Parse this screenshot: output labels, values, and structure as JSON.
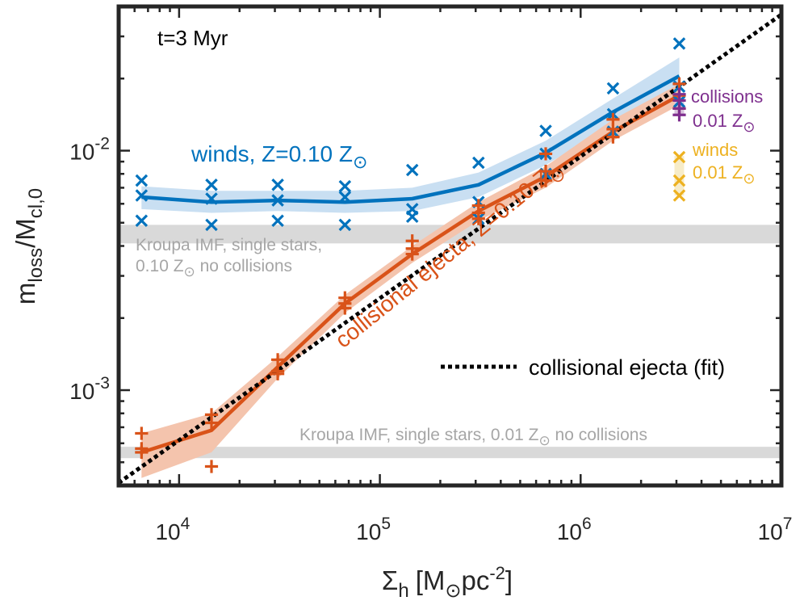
{
  "chart_data": {
    "type": "line",
    "scale": {
      "x": "log",
      "y": "log"
    },
    "xlim": [
      5000,
      10000000
    ],
    "ylim": [
      0.0004,
      0.04
    ],
    "xlabel": {
      "main": "Σ",
      "sub": "h",
      "bracket": "[M",
      "unit": "pc",
      "sup": "-2",
      "close": "]"
    },
    "ylabel": {
      "main": "m",
      "sub1": "loss",
      "slash": "/M",
      "sub2": "cl,0"
    },
    "xticks": [
      {
        "value": 10000,
        "base": "10",
        "exp": "4"
      },
      {
        "value": 100000,
        "base": "10",
        "exp": "5"
      },
      {
        "value": 1000000,
        "base": "10",
        "exp": "6"
      },
      {
        "value": 10000000,
        "base": "10",
        "exp": "7"
      }
    ],
    "yticks": [
      {
        "value": 0.001,
        "base": "10",
        "exp": "-3"
      },
      {
        "value": 0.01,
        "base": "10",
        "exp": "-2"
      }
    ],
    "annotations": {
      "time": "t=3 Myr",
      "winds_label": {
        "pre": "winds, Z=0.10 Z",
        "color": "#0072BD"
      },
      "collisional_label": {
        "pre": "collisional ejecta, Z=0.10 Z",
        "color": "#D95319"
      },
      "kroupa_010": {
        "line1": "Kroupa IMF, single stars,",
        "line2_pre": "0.10 Z",
        "line2_post": " no collisions",
        "color": "#a6a6a6"
      },
      "kroupa_001": {
        "pre": "Kroupa IMF, single stars, 0.01 Z",
        "post": " no collisions",
        "color": "#a6a6a6"
      },
      "collisions_001": {
        "line1": "collisions",
        "line2_pre": "0.01 Z",
        "color": "#7E2F8E"
      },
      "winds_001": {
        "line1": "winds",
        "line2_pre": "0.01 Z",
        "color": "#EDB120"
      },
      "legend_fit": "collisional ejecta (fit)",
      "sun_symbol": "⊙"
    },
    "bands": [
      {
        "name": "kroupa-0.10",
        "y_range": [
          0.0041,
          0.0049
        ],
        "color": "#d9d9d9"
      },
      {
        "name": "kroupa-0.01",
        "y_range": [
          0.00052,
          0.00058
        ],
        "color": "#d9d9d9"
      }
    ],
    "x": [
      6500,
      14500,
      31000,
      67000,
      145000,
      310000,
      670000,
      1450000,
      3100000
    ],
    "series": [
      {
        "key": "winds",
        "color": "#0072BD",
        "band_color": "#c9dff2",
        "marker": "x",
        "values": [
          0.0064,
          0.0061,
          0.0062,
          0.0061,
          0.0063,
          0.0072,
          0.0098,
          0.0145,
          0.0205
        ],
        "band_low": [
          0.0057,
          0.0055,
          0.0056,
          0.0055,
          0.0056,
          0.0064,
          0.0087,
          0.0128,
          0.018
        ],
        "band_high": [
          0.0071,
          0.0068,
          0.0068,
          0.0068,
          0.007,
          0.0081,
          0.011,
          0.0165,
          0.0245
        ],
        "points": [
          [
            6500,
            0.0075
          ],
          [
            6500,
            0.0065
          ],
          [
            6500,
            0.0051
          ],
          [
            14500,
            0.0072
          ],
          [
            14500,
            0.0063
          ],
          [
            14500,
            0.0049
          ],
          [
            31000,
            0.0072
          ],
          [
            31000,
            0.0062
          ],
          [
            31000,
            0.0051
          ],
          [
            67000,
            0.0071
          ],
          [
            67000,
            0.0064
          ],
          [
            67000,
            0.0049
          ],
          [
            145000,
            0.0083
          ],
          [
            145000,
            0.0057
          ],
          [
            145000,
            0.0053
          ],
          [
            310000,
            0.0089
          ],
          [
            310000,
            0.0061
          ],
          [
            310000,
            0.0052
          ],
          [
            670000,
            0.0121
          ],
          [
            670000,
            0.0097
          ],
          [
            670000,
            0.008
          ],
          [
            1450000,
            0.0182
          ],
          [
            1450000,
            0.0142
          ],
          [
            1450000,
            0.012
          ],
          [
            3100000,
            0.028
          ],
          [
            3100000,
            0.0185
          ],
          [
            3100000,
            0.016
          ]
        ]
      },
      {
        "key": "collisional",
        "color": "#D95319",
        "band_color": "#f4c4ad",
        "marker": "+",
        "values": [
          0.00055,
          0.00068,
          0.00125,
          0.0023,
          0.0037,
          0.0056,
          0.0078,
          0.012,
          0.017
        ],
        "band_low": [
          0.00043,
          0.00055,
          0.00112,
          0.0021,
          0.0034,
          0.0051,
          0.007,
          0.011,
          0.0155
        ],
        "band_high": [
          0.00066,
          0.0008,
          0.00138,
          0.0025,
          0.004,
          0.0061,
          0.0086,
          0.0135,
          0.019
        ],
        "points": [
          [
            6500,
            0.00066
          ],
          [
            6500,
            0.00057
          ],
          [
            6500,
            0.00055
          ],
          [
            14500,
            0.00079
          ],
          [
            14500,
            0.00073
          ],
          [
            14500,
            0.00048
          ],
          [
            31000,
            0.00134
          ],
          [
            31000,
            0.0012
          ],
          [
            31000,
            0.00117
          ],
          [
            67000,
            0.00243
          ],
          [
            67000,
            0.0023
          ],
          [
            67000,
            0.0022
          ],
          [
            145000,
            0.0042
          ],
          [
            145000,
            0.0039
          ],
          [
            145000,
            0.0037
          ],
          [
            310000,
            0.0059
          ],
          [
            310000,
            0.0055
          ],
          [
            310000,
            0.0052
          ],
          [
            670000,
            0.0097
          ],
          [
            670000,
            0.0082
          ],
          [
            670000,
            0.0075
          ],
          [
            1450000,
            0.0135
          ],
          [
            1450000,
            0.0123
          ],
          [
            1450000,
            0.0114
          ],
          [
            3100000,
            0.019
          ],
          [
            3100000,
            0.017
          ],
          [
            3100000,
            0.015
          ]
        ]
      },
      {
        "key": "fit",
        "color": "#000000",
        "style": "dotted",
        "points": [
          [
            5000,
            0.00041
          ],
          [
            10000000,
            0.037
          ]
        ]
      },
      {
        "key": "collisions-0.01",
        "color": "#7E2F8E",
        "band_color": "#d9c4df",
        "marker": "+",
        "band": [
          0.0141,
          0.0172
        ],
        "points": [
          [
            3100000,
            0.0172
          ],
          [
            3100000,
            0.0162
          ],
          [
            3100000,
            0.015
          ],
          [
            3100000,
            0.0141
          ]
        ]
      },
      {
        "key": "winds-0.01",
        "color": "#EDB120",
        "band_color": "#f7ecc8",
        "marker": "x",
        "band": [
          0.0065,
          0.0095
        ],
        "points": [
          [
            3100000,
            0.0094
          ],
          [
            3100000,
            0.0075
          ],
          [
            3100000,
            0.0065
          ]
        ]
      }
    ]
  }
}
